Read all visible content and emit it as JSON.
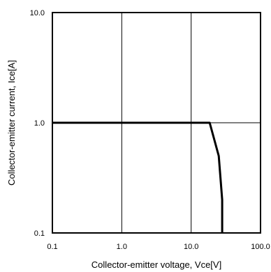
{
  "chart_data": {
    "type": "line",
    "title": "",
    "xlabel": "Collector-emitter voltage, Vce[V]",
    "ylabel": "Collector-emitter current, Ice[A]",
    "x_scale": "log",
    "y_scale": "log",
    "xlim": [
      0.1,
      100
    ],
    "ylim": [
      0.1,
      10
    ],
    "x_ticks": [
      0.1,
      1,
      10,
      100
    ],
    "x_tick_labels": [
      "0.1",
      "1.0",
      "10.0",
      "100.0"
    ],
    "y_ticks": [
      0.1,
      1,
      10
    ],
    "y_tick_labels": [
      "0.1",
      "1.0",
      "10.0"
    ],
    "grid": true,
    "series": [
      {
        "x": [
          0.1,
          18.5,
          25,
          28,
          28
        ],
        "y": [
          1.0,
          1.0,
          0.5,
          0.2,
          0.1
        ],
        "color": "#000000"
      }
    ]
  }
}
